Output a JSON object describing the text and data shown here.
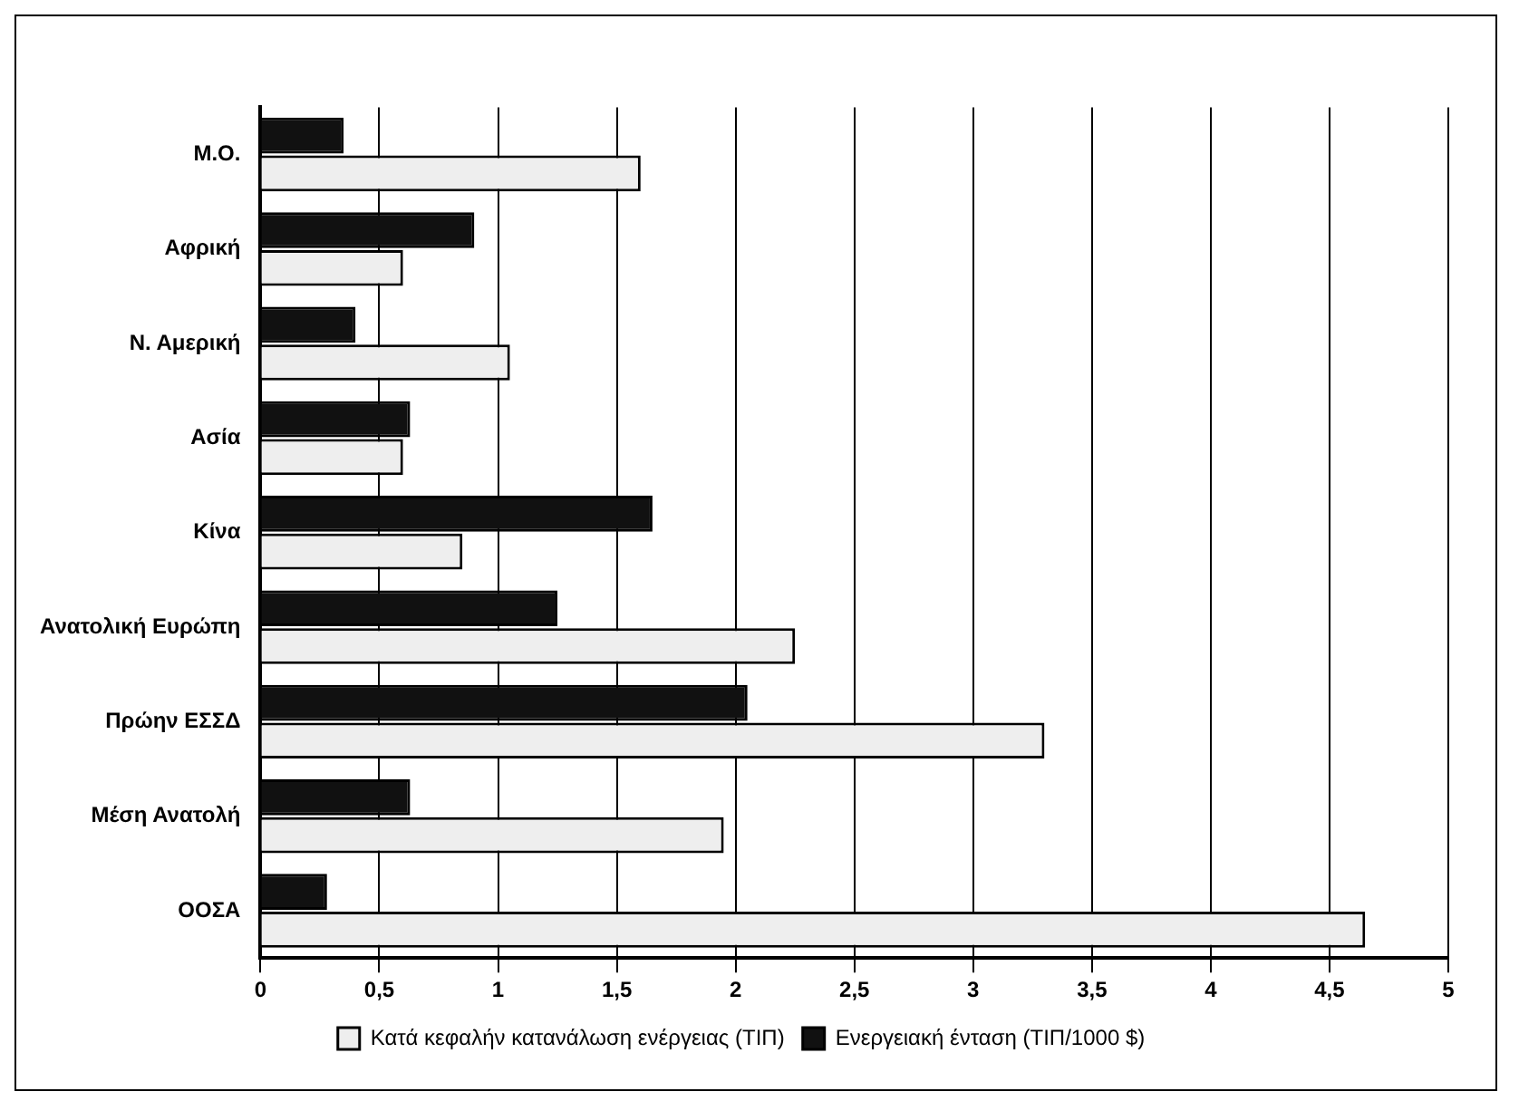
{
  "chart_data": {
    "type": "bar",
    "orientation": "horizontal",
    "categories": [
      "Μ.Ο.",
      "Αφρική",
      "Ν. Αμερική",
      "Ασία",
      "Κίνα",
      "Ανατολική Ευρώπη",
      "Πρώην ΕΣΣΔ",
      "Μέση Ανατολή",
      "ΟΟΣΑ"
    ],
    "series": [
      {
        "name": "Κατά κεφαλήν κατανάλωση ενέργειας (ΤΙΠ)",
        "color": "#eeeeee",
        "values": [
          1.6,
          0.6,
          1.05,
          0.6,
          0.85,
          2.25,
          3.3,
          1.95,
          4.65
        ]
      },
      {
        "name": "Ενεργειακή ένταση (ΤΙΠ/1000 $)",
        "color": "#111111",
        "values": [
          0.35,
          0.9,
          0.4,
          0.63,
          1.65,
          1.25,
          2.05,
          0.63,
          0.28
        ]
      }
    ],
    "xlim": [
      0,
      5
    ],
    "xticks": [
      0,
      {
        "value": 0.5,
        "label": "0,5"
      },
      1,
      {
        "value": 1.5,
        "label": "1,5"
      },
      2,
      {
        "value": 2.5,
        "label": "2,5"
      },
      3,
      {
        "value": 3.5,
        "label": "3,5"
      },
      4,
      {
        "value": 4.5,
        "label": "4,5"
      },
      5
    ],
    "grid": "x",
    "legend": "bottom"
  }
}
